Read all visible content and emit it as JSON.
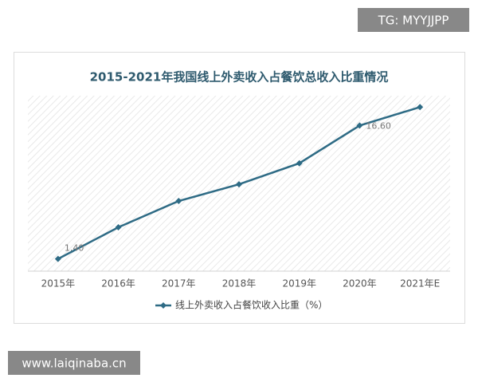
{
  "chart_data": {
    "type": "line",
    "title": "2015-2021年我国线上外卖收入占餐饮总收入比重情况",
    "categories": [
      "2015年",
      "2016年",
      "2017年",
      "2018年",
      "2019年",
      "2020年",
      "2021年E"
    ],
    "series": [
      {
        "name": "线上外卖收入占餐饮收入比重（%）",
        "color": "#2e6b85",
        "values": [
          1.4,
          5.0,
          8.0,
          9.9,
          12.3,
          16.6,
          18.7
        ],
        "value_labels": [
          "1.40",
          null,
          null,
          null,
          null,
          "16.60",
          null
        ]
      }
    ],
    "ylim": [
      0,
      20
    ],
    "legend": "bottom"
  },
  "watermarks": {
    "top": "TG: MYYJJPP",
    "bottom": "www.laiqinaba.cn"
  }
}
